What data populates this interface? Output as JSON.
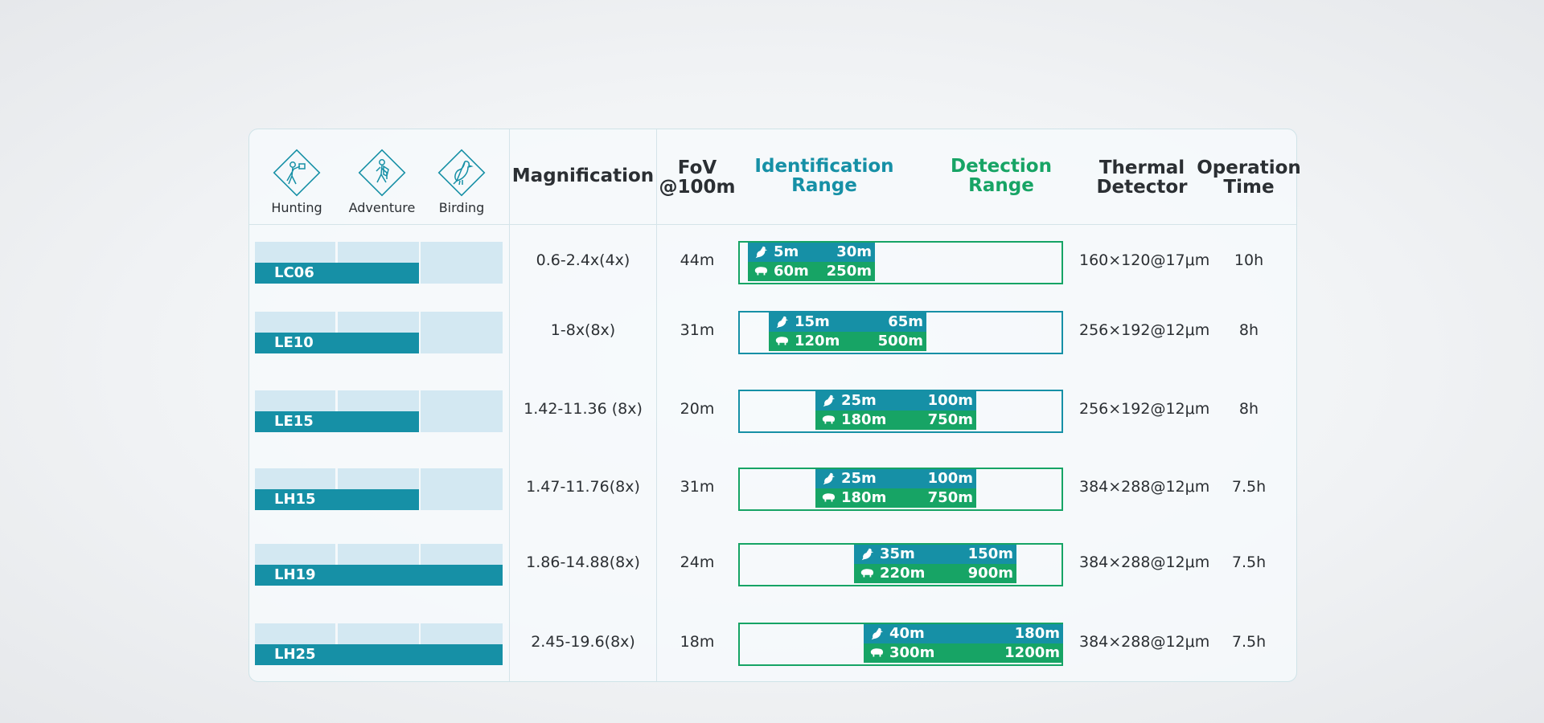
{
  "header": {
    "categories": [
      {
        "label": "Hunting",
        "icon": "hunter-icon"
      },
      {
        "label": "Adventure",
        "icon": "hiker-icon"
      },
      {
        "label": "Birding",
        "icon": "bird-icon"
      }
    ],
    "magnification": "Magnification",
    "fov_line1": "FoV",
    "fov_line2": "@100m",
    "ident_line1": "Identification",
    "ident_line2": "Range",
    "detect_line1": "Detection",
    "detect_line2": "Range",
    "thermal_line1": "Thermal",
    "thermal_line2": "Detector",
    "op_line1": "Operation",
    "op_line2": "Time"
  },
  "colors": {
    "teal": "#1690a6",
    "green": "#17a465",
    "light_blue": "#d3e8f2",
    "text": "#2b2f33"
  },
  "rows": [
    {
      "model": "LC06",
      "suitability_segments": 2,
      "magnification": "0.6-2.4x(4x)",
      "fov": "44m",
      "ident_min": "5m",
      "ident_max": "30m",
      "detect_min": "60m",
      "detect_max": "250m",
      "thermal": "160×120@17μm",
      "op_time": "10h"
    },
    {
      "model": "LE10",
      "suitability_segments": 2,
      "magnification": "1-8x(8x)",
      "fov": "31m",
      "ident_min": "15m",
      "ident_max": "65m",
      "detect_min": "120m",
      "detect_max": "500m",
      "thermal": "256×192@12μm",
      "op_time": "8h"
    },
    {
      "model": "LE15",
      "suitability_segments": 2,
      "magnification": "1.42-11.36 (8x)",
      "fov": "20m",
      "ident_min": "25m",
      "ident_max": "100m",
      "detect_min": "180m",
      "detect_max": "750m",
      "thermal": "256×192@12μm",
      "op_time": "8h"
    },
    {
      "model": "LH15",
      "suitability_segments": 2,
      "magnification": "1.47-11.76(8x)",
      "fov": "31m",
      "ident_min": "25m",
      "ident_max": "100m",
      "detect_min": "180m",
      "detect_max": "750m",
      "thermal": "384×288@12μm",
      "op_time": "7.5h"
    },
    {
      "model": "LH19",
      "suitability_segments": 3,
      "magnification": "1.86-14.88(8x)",
      "fov": "24m",
      "ident_min": "35m",
      "ident_max": "150m",
      "detect_min": "220m",
      "detect_max": "900m",
      "thermal": "384×288@12μm",
      "op_time": "7.5h"
    },
    {
      "model": "LH25",
      "suitability_segments": 3,
      "magnification": "2.45-19.6(8x)",
      "fov": "18m",
      "ident_min": "40m",
      "ident_max": "180m",
      "detect_min": "300m",
      "detect_max": "1200m",
      "thermal": "384×288@12μm",
      "op_time": "7.5h"
    }
  ]
}
